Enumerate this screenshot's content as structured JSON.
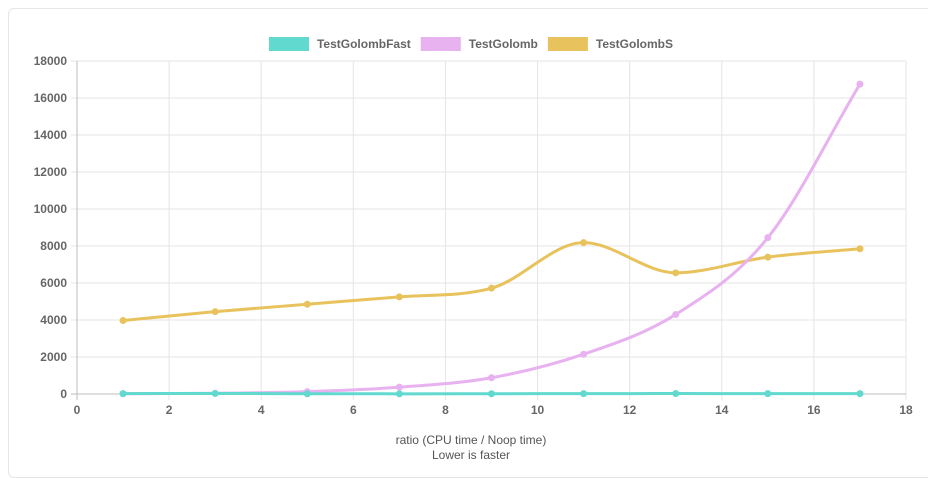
{
  "chart_data": {
    "type": "line",
    "title": "",
    "xlabel": "ratio (CPU time / Noop time)",
    "xlabel_sub": "Lower is faster",
    "ylabel": "",
    "xlim": [
      0,
      18
    ],
    "ylim": [
      0,
      18000
    ],
    "x_ticks": [
      0,
      2,
      4,
      6,
      8,
      10,
      12,
      14,
      16,
      18
    ],
    "y_ticks": [
      0,
      2000,
      4000,
      6000,
      8000,
      10000,
      12000,
      14000,
      16000,
      18000
    ],
    "grid": true,
    "legend_position": "top",
    "x": [
      1,
      3,
      5,
      7,
      9,
      11,
      13,
      15,
      17
    ],
    "series": [
      {
        "name": "TestGolombFast",
        "color": "#62d9cf",
        "values": [
          20,
          30,
          15,
          10,
          15,
          20,
          25,
          20,
          20
        ]
      },
      {
        "name": "TestGolomb",
        "color": "#e8b2f0",
        "values": [
          15,
          40,
          130,
          370,
          880,
          2150,
          4300,
          8450,
          16750
        ]
      },
      {
        "name": "TestGolombS",
        "color": "#e8c25c",
        "values": [
          3970,
          4450,
          4850,
          5250,
          5720,
          8180,
          6550,
          7400,
          7850
        ]
      }
    ]
  }
}
